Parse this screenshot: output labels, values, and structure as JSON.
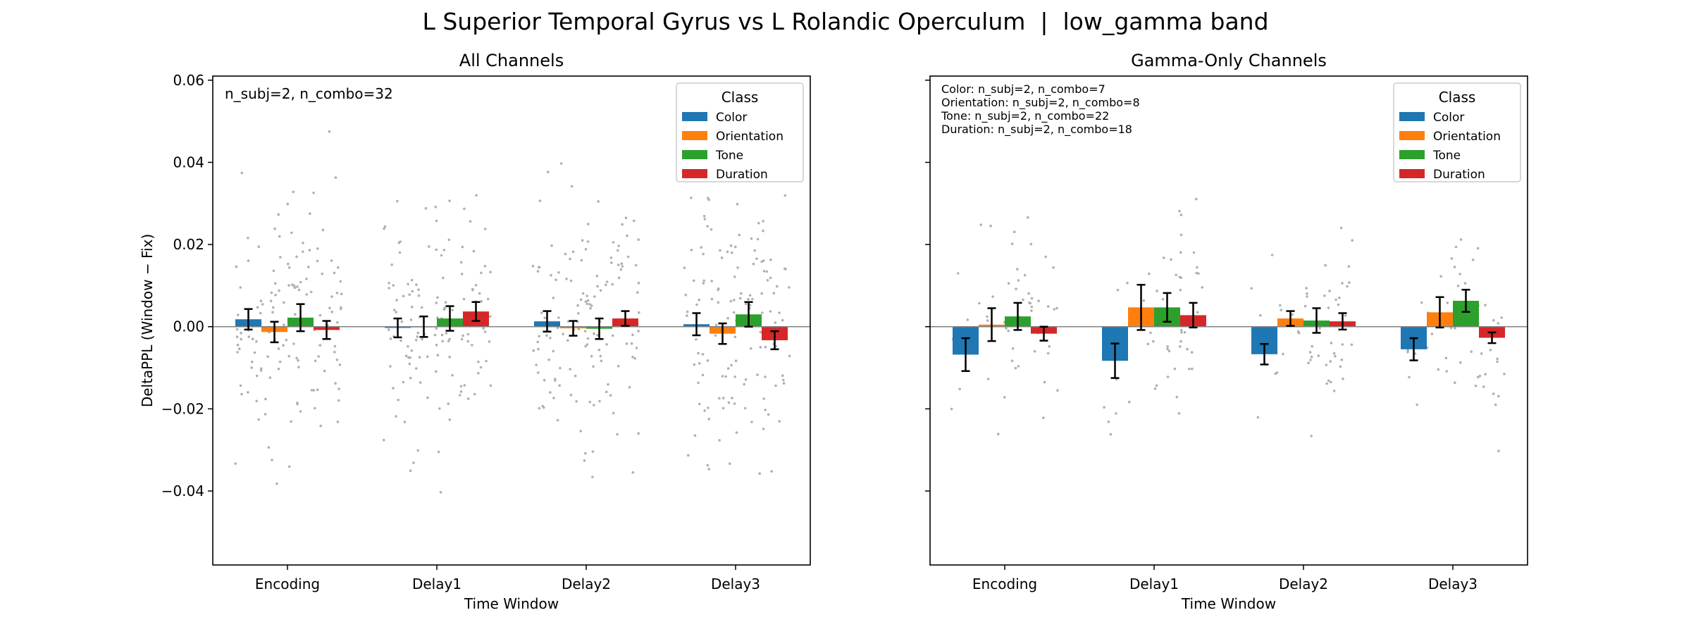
{
  "figure_title": "L Superior Temporal Gyrus vs L Rolandic Operculum  |  low_gamma band",
  "colors": {
    "Color": "#1f77b4",
    "Orientation": "#ff7f0e",
    "Tone": "#2ca02c",
    "Duration": "#d62728",
    "points": "#b0b0b0",
    "zero_line": "#808080"
  },
  "chart_data": [
    {
      "type": "bar",
      "title": "All Channels",
      "xlabel": "Time Window",
      "ylabel": "DeltaPPL (Window − Fix)",
      "ylim": [
        -0.058,
        0.061
      ],
      "yticks": [
        0.06,
        0.04,
        0.02,
        0.0,
        -0.02,
        -0.04
      ],
      "ytick_labels": [
        "0.06",
        "0.04",
        "0.02",
        "0.00",
        "−0.02",
        "−0.04"
      ],
      "categories": [
        "Encoding",
        "Delay1",
        "Delay2",
        "Delay3"
      ],
      "annotation": [
        "n_subj=2, n_combo=32"
      ],
      "legend": {
        "title": "Class",
        "placement": "top-right"
      },
      "series": [
        {
          "name": "Color",
          "values": [
            0.0018,
            -0.0003,
            0.0013,
            0.0006
          ],
          "err": [
            0.0025,
            0.0023,
            0.0025,
            0.0027
          ]
        },
        {
          "name": "Orientation",
          "values": [
            -0.0013,
            0.0,
            -0.0004,
            -0.0017
          ],
          "err": [
            0.0025,
            0.0025,
            0.0018,
            0.0025
          ]
        },
        {
          "name": "Tone",
          "values": [
            0.0022,
            0.002,
            -0.0005,
            0.003
          ],
          "err": [
            0.0033,
            0.003,
            0.0025,
            0.003
          ]
        },
        {
          "name": "Duration",
          "values": [
            -0.0008,
            0.0037,
            0.002,
            -0.0033
          ],
          "err": [
            0.0022,
            0.0023,
            0.0018,
            0.0022
          ]
        }
      ],
      "scatter_seed": 11
    },
    {
      "type": "bar",
      "title": "Gamma-Only Channels",
      "xlabel": "Time Window",
      "ylabel": "",
      "ylim": [
        -0.058,
        0.061
      ],
      "yticks": [
        0.06,
        0.04,
        0.02,
        0.0,
        -0.02,
        -0.04
      ],
      "ytick_labels": [
        "",
        "",
        "",
        "",
        "",
        ""
      ],
      "categories": [
        "Encoding",
        "Delay1",
        "Delay2",
        "Delay3"
      ],
      "annotation": [
        "Color: n_subj=2, n_combo=7",
        "Orientation: n_subj=2, n_combo=8",
        "Tone: n_subj=2, n_combo=22",
        "Duration: n_subj=2, n_combo=18"
      ],
      "legend": {
        "title": "Class",
        "placement": "top-right"
      },
      "series": [
        {
          "name": "Color",
          "values": [
            -0.0068,
            -0.0083,
            -0.0067,
            -0.0055
          ],
          "err": [
            0.004,
            0.0042,
            0.0025,
            0.0027
          ]
        },
        {
          "name": "Orientation",
          "values": [
            0.0005,
            0.0047,
            0.002,
            0.0035
          ],
          "err": [
            0.004,
            0.0055,
            0.0018,
            0.0037
          ]
        },
        {
          "name": "Tone",
          "values": [
            0.0025,
            0.0047,
            0.0015,
            0.0063
          ],
          "err": [
            0.0033,
            0.0035,
            0.003,
            0.0027
          ]
        },
        {
          "name": "Duration",
          "values": [
            -0.0017,
            0.0028,
            0.0013,
            -0.0027
          ],
          "err": [
            0.0017,
            0.003,
            0.002,
            0.0013
          ]
        }
      ],
      "scatter_seed": 29
    }
  ]
}
